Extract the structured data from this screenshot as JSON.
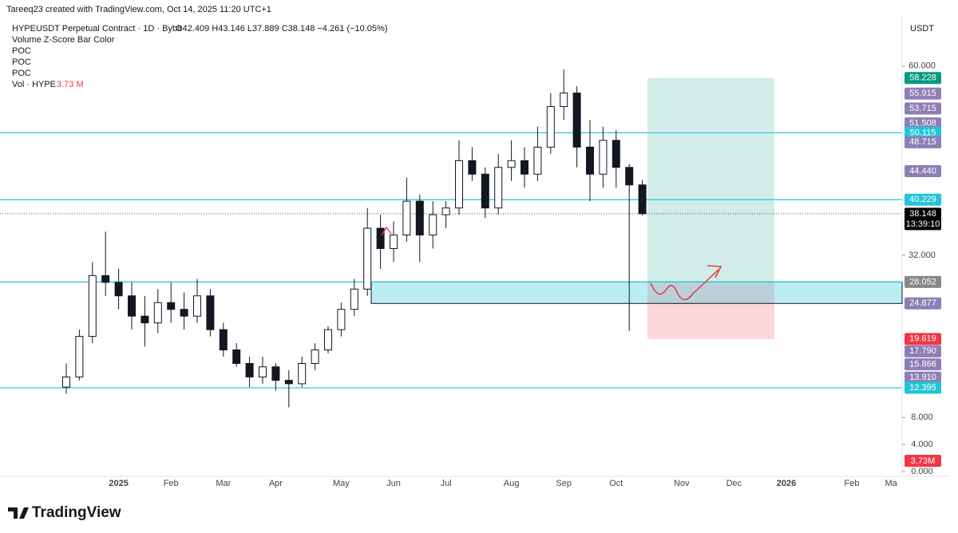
{
  "header": {
    "credit": "Tareeq23 created with TradingView.com, Oct 14, 2025 11:20 UTC+1",
    "symbol": "HYPEUSDT Perpetual Contract · 1D · Bybit",
    "ohlc_text": "O42.409 H43.146 L37.889 C38.148 −4.261 (−10.05%)",
    "indicators": [
      "Volume Z-Score Bar Color",
      "POC",
      "POC",
      "POC"
    ],
    "volume_name": "Vol · HYPE",
    "volume_value": "3.73 M",
    "currency": "USDT",
    "logo": "TradingView"
  },
  "chart_data": {
    "type": "candlestick",
    "categories": [
      null,
      null,
      null,
      null,
      "2025",
      null,
      null,
      null,
      "Feb",
      null,
      null,
      null,
      "Mar",
      null,
      null,
      null,
      "Apr",
      null,
      null,
      null,
      null,
      "May",
      null,
      null,
      null,
      "Jun",
      null,
      null,
      null,
      "Jul",
      null,
      null,
      null,
      null,
      "Aug",
      null,
      null,
      null,
      "Sep",
      null,
      null,
      null,
      "Oct",
      null,
      null,
      null,
      null,
      "Nov",
      null,
      null,
      null,
      "Dec",
      null,
      null,
      null,
      "2026",
      null,
      null,
      null,
      null,
      "Feb",
      null,
      null,
      "Ma"
    ],
    "open": [
      12.5,
      14,
      20,
      29,
      28,
      26,
      23,
      22,
      25,
      24,
      23,
      26,
      21,
      18,
      16,
      14,
      15.5,
      13.5,
      13,
      16,
      18,
      21,
      24,
      27,
      36,
      33,
      35,
      40,
      35,
      38,
      39,
      46,
      44,
      39,
      45,
      46,
      44,
      48,
      54,
      56,
      48,
      44,
      49,
      45,
      42.409,
      null,
      null,
      null,
      null,
      null,
      null,
      null,
      null,
      null,
      null,
      null,
      null,
      null,
      null,
      null,
      null,
      null,
      null,
      null
    ],
    "high": [
      16,
      21,
      31,
      35.5,
      30,
      28,
      26,
      27,
      28,
      26.5,
      28.5,
      27,
      22,
      19,
      17,
      17,
      16,
      15,
      17,
      19,
      21.5,
      25,
      28.5,
      39,
      38,
      37,
      43.5,
      41,
      40,
      40,
      49,
      48,
      45,
      47,
      49,
      48,
      51,
      56,
      59.5,
      57,
      52,
      51,
      50.5,
      45.5,
      43.146,
      null,
      null,
      null,
      null,
      null,
      null,
      null,
      null,
      null,
      null,
      null,
      null,
      null,
      null,
      null,
      null,
      null,
      null,
      null
    ],
    "low": [
      11.5,
      13.5,
      19,
      26,
      24,
      21,
      18.5,
      20.5,
      22,
      21,
      22,
      20,
      17,
      15.5,
      12.5,
      13,
      12,
      9.5,
      12.5,
      15,
      17.5,
      20,
      23,
      26,
      30,
      31,
      34,
      31,
      33,
      36,
      38,
      43,
      37.5,
      38,
      43,
      42,
      43,
      47,
      52,
      45,
      40,
      42,
      42,
      20.8,
      37.889,
      null,
      null,
      null,
      null,
      null,
      null,
      null,
      null,
      null,
      null,
      null,
      null,
      null,
      null,
      null,
      null,
      null,
      null,
      null
    ],
    "close": [
      14,
      20,
      29,
      28,
      26,
      23,
      22,
      25,
      24,
      23,
      26,
      21,
      18,
      16,
      14,
      15.5,
      13.5,
      13,
      16,
      18,
      21,
      24,
      27,
      36,
      33,
      35,
      40,
      35,
      38,
      39,
      46,
      44,
      39,
      45,
      46,
      44,
      48,
      54,
      56,
      48,
      44,
      49,
      45,
      42.409,
      38.148,
      null,
      null,
      null,
      null,
      null,
      null,
      null,
      null,
      null,
      null,
      null,
      null,
      null,
      null,
      null,
      null,
      null,
      null,
      null
    ],
    "up_color": "#ffffff",
    "down_color": "#131722",
    "outline_color": "#131722",
    "ylim": [
      -0.7,
      67.4
    ],
    "yticks": [
      {
        "value": 0,
        "label": "0.000"
      },
      {
        "value": 4,
        "label": "4.000"
      },
      {
        "value": 8,
        "label": "8.000"
      },
      {
        "value": 32,
        "label": "32.000"
      },
      {
        "value": 60,
        "label": "60.000"
      }
    ],
    "levels": [
      50.115,
      40.229,
      28.052,
      12.395
    ],
    "level_color": "#22c5d8",
    "last_price": 38.148,
    "zone": [
      24.877,
      28.052
    ],
    "position": {
      "target": 58.228,
      "entry": 28.052,
      "stop": 19.619
    },
    "price_labels": [
      {
        "value": 58.228,
        "label": "58.228",
        "color": "#089981"
      },
      {
        "value": 55.915,
        "label": "55.915",
        "color": "#8d7fb5"
      },
      {
        "value": 53.715,
        "label": "53.715",
        "color": "#8d7fb5"
      },
      {
        "value": 51.508,
        "label": "51.508",
        "color": "#8d7fb5"
      },
      {
        "value": 50.115,
        "label": "50.115",
        "color": "#22c5d8"
      },
      {
        "value": 48.715,
        "label": "48.715",
        "color": "#8d7fb5"
      },
      {
        "value": 44.44,
        "label": "44.440",
        "color": "#8d7fb5"
      },
      {
        "value": 40.229,
        "label": "40.229",
        "color": "#22c5d8"
      },
      {
        "value": 38.148,
        "label": "38.148",
        "color": "#000000"
      },
      {
        "value": 28.052,
        "label": "28.052",
        "color": "#888888"
      },
      {
        "value": 24.877,
        "label": "24.877",
        "color": "#8d7fb5"
      },
      {
        "value": 19.619,
        "label": "19.619",
        "color": "#f23645"
      },
      {
        "value": 17.79,
        "label": "17.790",
        "color": "#8d7fb5"
      },
      {
        "value": 15.866,
        "label": "15.866",
        "color": "#8d7fb5"
      },
      {
        "value": 13.91,
        "label": "13.910",
        "color": "#8d7fb5"
      },
      {
        "value": 12.395,
        "label": "12.395",
        "color": "#22c5d8"
      }
    ],
    "countdown": "13:39:10",
    "volume_label": "3.73M"
  }
}
